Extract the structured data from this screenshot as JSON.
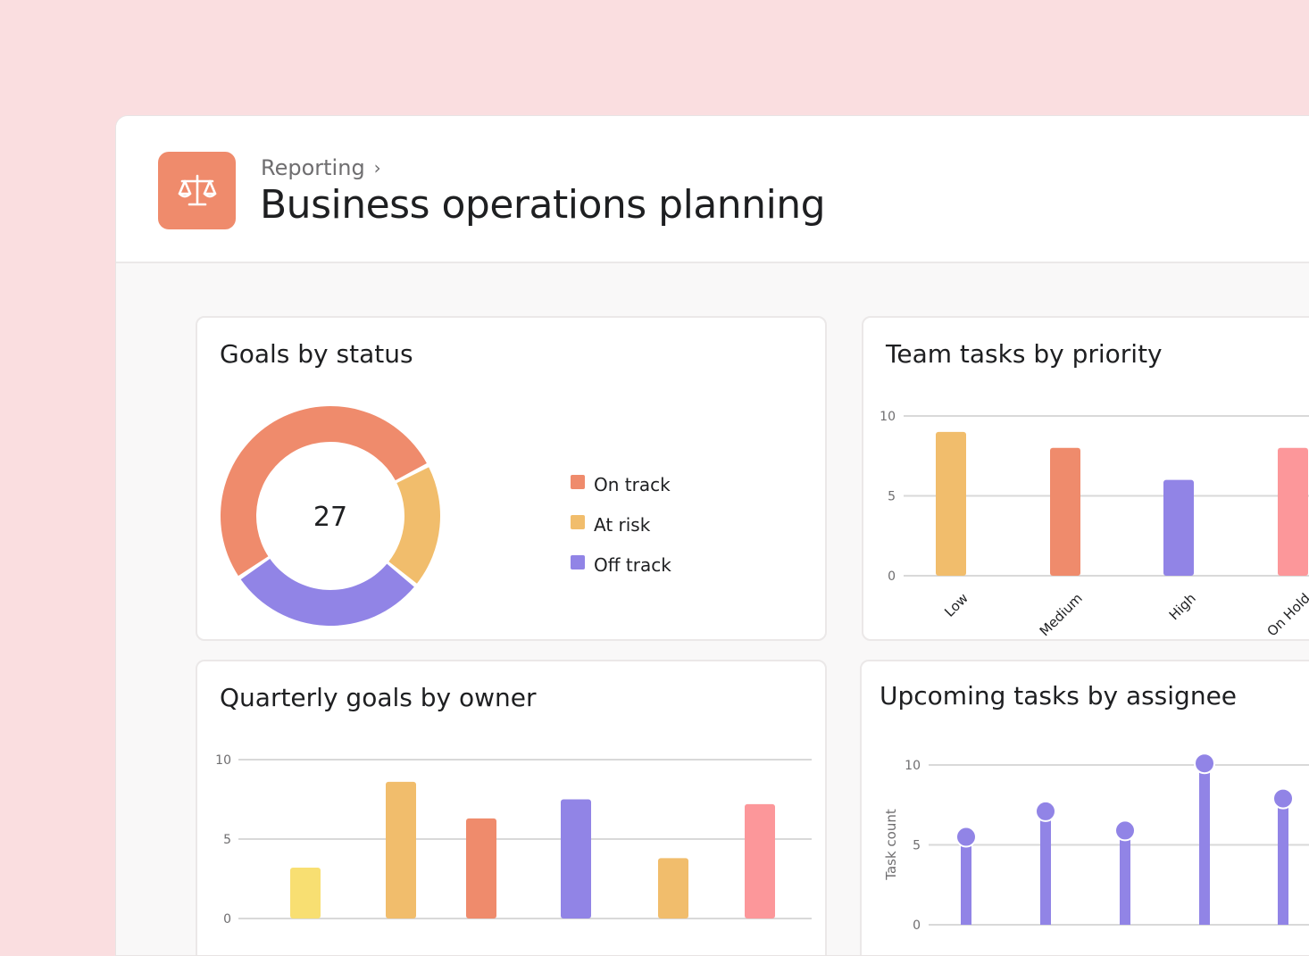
{
  "app_icon": {
    "name": "scales-icon",
    "color": "#ef8b6c"
  },
  "header": {
    "breadcrumb": "Reporting",
    "title": "Business operations planning"
  },
  "cards": {
    "goals_by_status": {
      "title": "Goals by status",
      "center_value": "27"
    },
    "team_tasks_by_priority": {
      "title": "Team tasks by priority"
    },
    "quarterly_goals_by_owner": {
      "title": "Quarterly goals by owner"
    },
    "upcoming_tasks_by_assignee": {
      "title": "Upcoming tasks by assignee"
    }
  },
  "colors": {
    "coral": "#ef8b6c",
    "yellow_orange": "#f1bd6c",
    "purple": "#9184e6",
    "pink": "#fc979a",
    "yellow": "#f8df72",
    "grid": "#d9d9d9",
    "tick": "#6f6e70"
  },
  "chart_data": [
    {
      "id": "goals_by_status",
      "type": "pie",
      "variant": "donut",
      "total": 27,
      "legend_position": "right",
      "slices": [
        {
          "label": "On track",
          "value": 14,
          "color": "#ef8b6c"
        },
        {
          "label": "At risk",
          "value": 5,
          "color": "#f1bd6c"
        },
        {
          "label": "Off track",
          "value": 8,
          "color": "#9184e6"
        }
      ]
    },
    {
      "id": "team_tasks_by_priority",
      "type": "bar",
      "categories": [
        "Low",
        "Medium",
        "High",
        "On Hold"
      ],
      "values": [
        9,
        8,
        6,
        8
      ],
      "colors": [
        "#f1bd6c",
        "#ef8b6c",
        "#9184e6",
        "#fc979a"
      ],
      "ylim": [
        0,
        10
      ],
      "yticks": [
        0,
        5,
        10
      ],
      "grid": true
    },
    {
      "id": "quarterly_goals_by_owner",
      "type": "bar",
      "categories": [
        "",
        "",
        "",
        "",
        "",
        ""
      ],
      "values": [
        3.2,
        8.6,
        6.3,
        7.5,
        3.8,
        7.2
      ],
      "colors": [
        "#f8df72",
        "#f1bd6c",
        "#ef8b6c",
        "#9184e6",
        "#f1bd6c",
        "#fc979a"
      ],
      "ylim": [
        0,
        10
      ],
      "yticks": [
        0,
        5,
        10
      ],
      "grid": true
    },
    {
      "id": "upcoming_tasks_by_assignee",
      "type": "scatter",
      "variant": "lollipop",
      "ylabel": "Task count",
      "values": [
        5.5,
        7.1,
        5.9,
        10.1,
        7.9
      ],
      "color": "#9184e6",
      "ylim": [
        0,
        10
      ],
      "yticks": [
        0,
        5,
        10
      ],
      "grid": true
    }
  ]
}
